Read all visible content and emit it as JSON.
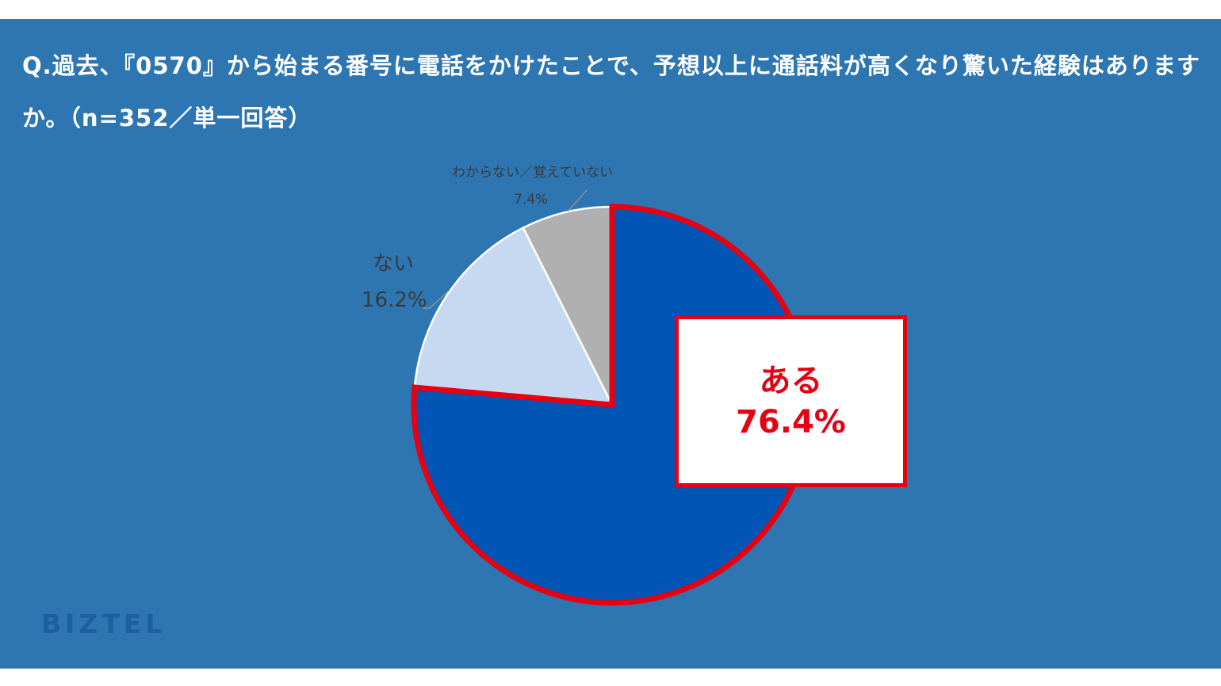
{
  "question": "Q.過去、『0570』から始まる番号に電話をかけたことで、予想以上に通話料が高くなり驚いた経験はありますか。（n=352／単一回答）",
  "logo_text": "BIZTEL",
  "colors": {
    "frame": "#2e76b1",
    "highlight": "#e60012",
    "slice_yes": "#0055b5",
    "slice_no": "#c7d9f0",
    "slice_unknown": "#b0b0b0"
  },
  "chart_data": {
    "type": "pie",
    "title": "",
    "start_angle_deg": 0,
    "direction": "clockwise",
    "slices": [
      {
        "label": "ある",
        "value": 76.4,
        "value_label": "76.4%",
        "color": "#0055b5",
        "highlighted": true
      },
      {
        "label": "ない",
        "value": 16.2,
        "value_label": "16.2%",
        "color": "#c7d9f0",
        "highlighted": false
      },
      {
        "label": "わからない／覚えていない",
        "value": 7.4,
        "value_label": "7.4%",
        "color": "#b0b0b0",
        "highlighted": false
      }
    ]
  }
}
